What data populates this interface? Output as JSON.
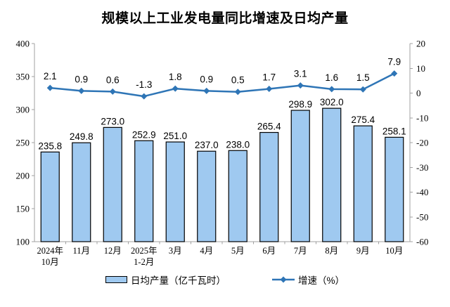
{
  "chart_data": {
    "type": "bar",
    "title": "规模以上工业发电量同比增速及日均产量",
    "categories": [
      "2024年\n10月",
      "11月",
      "12月",
      "2025年\n1-2月",
      "3月",
      "4月",
      "5月",
      "6月",
      "7月",
      "8月",
      "9月",
      "10月"
    ],
    "series": [
      {
        "name": "日均产量（亿千瓦时）",
        "type": "bar",
        "axis": "left",
        "values": [
          235.8,
          249.8,
          273.0,
          252.9,
          251.0,
          237.0,
          238.0,
          265.4,
          298.9,
          302.0,
          275.4,
          258.1
        ],
        "color": "#9FC9F0",
        "border_color": "#000000"
      },
      {
        "name": "增速（%）",
        "type": "line",
        "axis": "right",
        "values": [
          2.1,
          0.9,
          0.6,
          -1.3,
          1.8,
          0.9,
          0.5,
          1.7,
          3.1,
          1.6,
          1.5,
          7.9
        ],
        "color": "#2E75B6"
      }
    ],
    "left_axis": {
      "min": 100,
      "max": 400,
      "step": 50
    },
    "right_axis": {
      "min": -60,
      "max": 20,
      "step": 10
    },
    "grid": false,
    "legend_position": "bottom",
    "axis_color": "#A0A0A0",
    "text_color": "#000000"
  },
  "legend": {
    "bar_label": "日均产量（亿千瓦时）",
    "line_label": "增速（%）"
  }
}
